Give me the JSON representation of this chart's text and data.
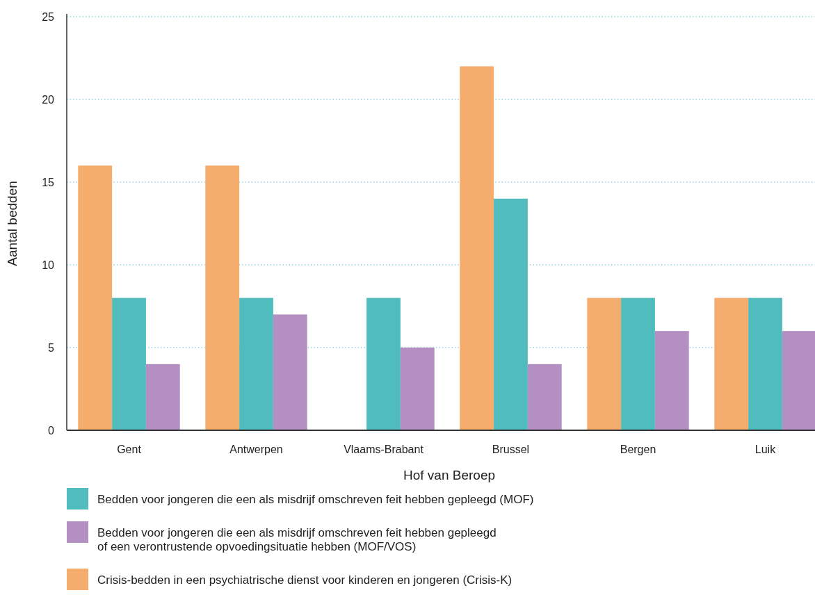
{
  "chart_data": {
    "type": "bar",
    "xlabel": "Hof van Beroep",
    "ylabel": "Aantal bedden",
    "categories": [
      "Gent",
      "Antwerpen",
      "Vlaams-Brabant",
      "Brussel",
      "Bergen",
      "Luik"
    ],
    "series": [
      {
        "name": "Crisis-bedden in een psychiatrische dienst voor kinderen en jongeren (Crisis-K)",
        "color": "#f5ad6e",
        "values": [
          16,
          16,
          null,
          22,
          8,
          8
        ]
      },
      {
        "name": "Bedden voor jongeren die een als misdrijf omschreven feit hebben gepleegd (MOF)",
        "color": "#50bcbd",
        "values": [
          8,
          8,
          8,
          14,
          8,
          8
        ]
      },
      {
        "name": "Bedden voor jongeren die een als misdrijf omschreven feit hebben gepleegd\nof een verontrustende opvoedingsituatie hebben (MOF/VOS)",
        "color": "#b48fc1",
        "values": [
          4,
          7,
          5,
          4,
          6,
          6
        ]
      }
    ],
    "ylim": [
      0,
      25
    ],
    "yticks": [
      0,
      5,
      10,
      15,
      20,
      25
    ],
    "grid": "y",
    "legend": "bottom"
  }
}
